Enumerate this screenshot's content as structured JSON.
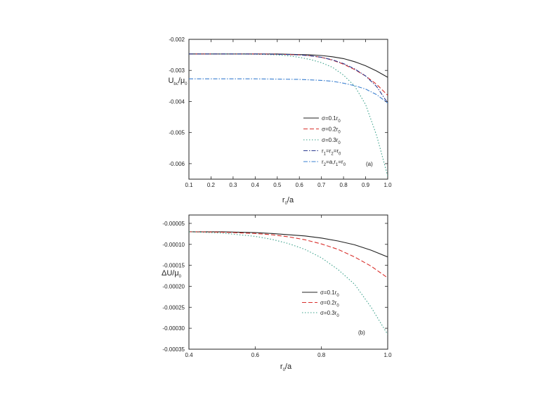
{
  "chart_data": [
    {
      "type": "line",
      "panel_label": "(a)",
      "xlabel": {
        "main": "r",
        "sub": "0",
        "tail": "/a"
      },
      "ylabel": {
        "main": "U",
        "sub": "bc",
        "tail": "/μ",
        "sub2": "0"
      },
      "xlim": [
        0.1,
        1.0
      ],
      "ylim": [
        -0.0065,
        -0.002
      ],
      "x_ticks": [
        "0.1",
        "0.2",
        "0.3",
        "0.4",
        "0.5",
        "0.6",
        "0.7",
        "0.8",
        "0.9",
        "1.0"
      ],
      "y_ticks": [
        "-0.002",
        "-0.003",
        "-0.004",
        "-0.005",
        "-0.006"
      ],
      "legend_position": "lower-right",
      "series": [
        {
          "label_main": "σ=0.1r",
          "label_sub": "0",
          "label_tail": "",
          "color": "#222222",
          "dash": "",
          "x": [
            0.1,
            0.2,
            0.3,
            0.4,
            0.5,
            0.6,
            0.65,
            0.7,
            0.75,
            0.8,
            0.85,
            0.9,
            0.95,
            1.0
          ],
          "y": [
            -0.00247,
            -0.00247,
            -0.00247,
            -0.00247,
            -0.00247,
            -0.00249,
            -0.0025,
            -0.00252,
            -0.00256,
            -0.00262,
            -0.00272,
            -0.00285,
            -0.00302,
            -0.00322
          ]
        },
        {
          "label_main": "σ=0.2r",
          "label_sub": "0",
          "label_tail": "",
          "color": "#d9302c",
          "dash": "6,3",
          "x": [
            0.1,
            0.2,
            0.3,
            0.4,
            0.5,
            0.6,
            0.65,
            0.7,
            0.75,
            0.8,
            0.85,
            0.9,
            0.95,
            1.0
          ],
          "y": [
            -0.00247,
            -0.00247,
            -0.00247,
            -0.00247,
            -0.00248,
            -0.0025,
            -0.00253,
            -0.00258,
            -0.00267,
            -0.0028,
            -0.00297,
            -0.00318,
            -0.00345,
            -0.0038
          ]
        },
        {
          "label_main": "σ=0.3r",
          "label_sub": "0",
          "label_tail": "",
          "color": "#3aa08a",
          "dash": "1.5,2.5",
          "x": [
            0.1,
            0.2,
            0.3,
            0.4,
            0.5,
            0.55,
            0.6,
            0.65,
            0.7,
            0.75,
            0.8,
            0.85,
            0.9,
            0.95,
            1.0
          ],
          "y": [
            -0.00247,
            -0.00247,
            -0.00247,
            -0.00248,
            -0.0025,
            -0.00253,
            -0.00258,
            -0.00265,
            -0.00275,
            -0.0029,
            -0.00315,
            -0.0035,
            -0.0041,
            -0.0051,
            -0.0064
          ]
        },
        {
          "label_main": "r",
          "label_sub": "1",
          "label_tail": "=r",
          "label_sub_b": "2",
          "label_tail_b": "=r",
          "label_sub_c": "0",
          "color": "#2b3a8f",
          "dash": "6,2,1.5,2",
          "x": [
            0.1,
            0.2,
            0.3,
            0.4,
            0.5,
            0.6,
            0.65,
            0.7,
            0.75,
            0.8,
            0.85,
            0.9,
            0.95,
            1.0
          ],
          "y": [
            -0.00247,
            -0.00247,
            -0.00247,
            -0.00247,
            -0.00248,
            -0.0025,
            -0.00253,
            -0.00258,
            -0.00266,
            -0.00278,
            -0.00295,
            -0.00318,
            -0.00352,
            -0.00405
          ]
        },
        {
          "label_main": "r",
          "label_sub": "2",
          "label_tail": "=a,r",
          "label_sub_b": "1",
          "label_tail_b": "=r",
          "label_sub_c": "0",
          "color": "#3a7fd0",
          "dash": "6,2,1.5,2",
          "x": [
            0.1,
            0.2,
            0.3,
            0.4,
            0.5,
            0.6,
            0.7,
            0.75,
            0.8,
            0.85,
            0.9,
            0.95,
            1.0
          ],
          "y": [
            -0.00327,
            -0.00327,
            -0.00327,
            -0.00327,
            -0.00328,
            -0.00329,
            -0.00332,
            -0.00335,
            -0.00341,
            -0.00349,
            -0.0036,
            -0.00378,
            -0.00405
          ]
        }
      ]
    },
    {
      "type": "line",
      "panel_label": "(b)",
      "xlabel": {
        "main": "r",
        "sub": "0",
        "tail": "/a"
      },
      "ylabel": {
        "main": "ΔU/μ",
        "sub": "0",
        "tail": "",
        "sub2": ""
      },
      "xlim": [
        0.4,
        1.0
      ],
      "ylim": [
        -0.00035,
        -3e-05
      ],
      "x_ticks": [
        "0.4",
        "0.6",
        "0.8",
        "1.0"
      ],
      "y_ticks": [
        "-0.00005",
        "-0.00010",
        "-0.00015",
        "-0.00020",
        "-0.00025",
        "-0.00030",
        "-0.00035"
      ],
      "legend_position": "lower-right",
      "series": [
        {
          "label_main": "σ=0.1r",
          "label_sub": "0",
          "label_tail": "",
          "color": "#222222",
          "dash": "",
          "x": [
            0.4,
            0.5,
            0.6,
            0.65,
            0.7,
            0.75,
            0.8,
            0.85,
            0.9,
            0.95,
            1.0
          ],
          "y": [
            -7e-05,
            -7e-05,
            -7.2e-05,
            -7.4e-05,
            -7.7e-05,
            -8e-05,
            -8.5e-05,
            -9.2e-05,
            -0.000101,
            -0.000114,
            -0.00013
          ]
        },
        {
          "label_main": "σ=0.2r",
          "label_sub": "0",
          "label_tail": "",
          "color": "#d9302c",
          "dash": "6,3",
          "x": [
            0.4,
            0.5,
            0.6,
            0.65,
            0.7,
            0.75,
            0.8,
            0.85,
            0.9,
            0.95,
            1.0
          ],
          "y": [
            -7e-05,
            -7.1e-05,
            -7.4e-05,
            -7.7e-05,
            -8.2e-05,
            -8.9e-05,
            -9.9e-05,
            -0.000112,
            -0.00013,
            -0.000152,
            -0.00018
          ]
        },
        {
          "label_main": "σ=0.3r",
          "label_sub": "0",
          "label_tail": "",
          "color": "#3aa08a",
          "dash": "1.5,2.5",
          "x": [
            0.4,
            0.5,
            0.6,
            0.65,
            0.7,
            0.75,
            0.8,
            0.85,
            0.9,
            0.95,
            1.0
          ],
          "y": [
            -7e-05,
            -7.3e-05,
            -8.1e-05,
            -8.8e-05,
            -9.8e-05,
            -0.000112,
            -0.000132,
            -0.00016,
            -0.000195,
            -0.00025,
            -0.000315
          ]
        }
      ]
    }
  ]
}
